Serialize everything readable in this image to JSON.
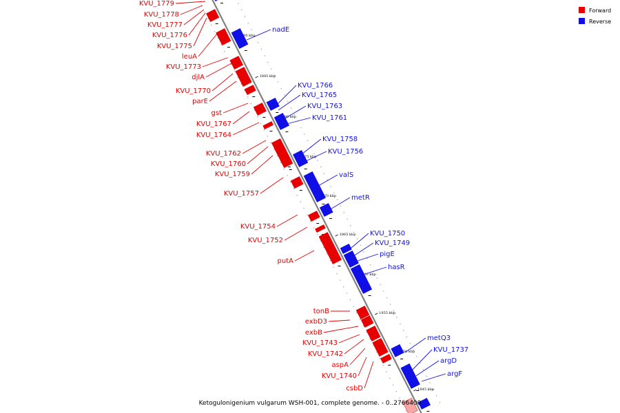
{
  "colors": {
    "forward": "#e60000",
    "reverse": "#1010e6",
    "backbone": "#808080"
  },
  "legend": {
    "forward_label": "Forward",
    "reverse_label": "Reverse"
  },
  "caption": "Ketogulonigenium vulgarum WSH-001, complete genome. - 0..2766400",
  "ticks": [
    "1890 kbp",
    "1885 kbp",
    "1880 kbp",
    "1875 kbp",
    "1870 kbp",
    "1865 kbp",
    "1860 kbp",
    "1855 kbp",
    "1850 kbp",
    "1845 kbp"
  ],
  "forward_genes": [
    "KVU_1779",
    "KVU_1778",
    "KVU_1777",
    "KVU_1776",
    "KVU_1775",
    "leuA",
    "KVU_1773",
    "djlA",
    "KVU_1770",
    "parE",
    "gst",
    "KVU_1767",
    "KVU_1764",
    "KVU_1762",
    "KVU_1760",
    "KVU_1759",
    "KVU_1757",
    "KVU_1754",
    "KVU_1752",
    "putA",
    "tonB",
    "exbD3",
    "exbB",
    "KVU_1743",
    "KVU_1742",
    "aspA",
    "KVU_1740",
    "csbD"
  ],
  "reverse_genes": [
    "nadE",
    "KVU_1766",
    "KVU_1765",
    "KVU_1763",
    "KVU_1761",
    "KVU_1758",
    "KVU_1756",
    "valS",
    "metR",
    "KVU_1750",
    "KVU_1749",
    "pigE",
    "hasR",
    "metQ3",
    "KVU_1737",
    "argD",
    "argF"
  ]
}
